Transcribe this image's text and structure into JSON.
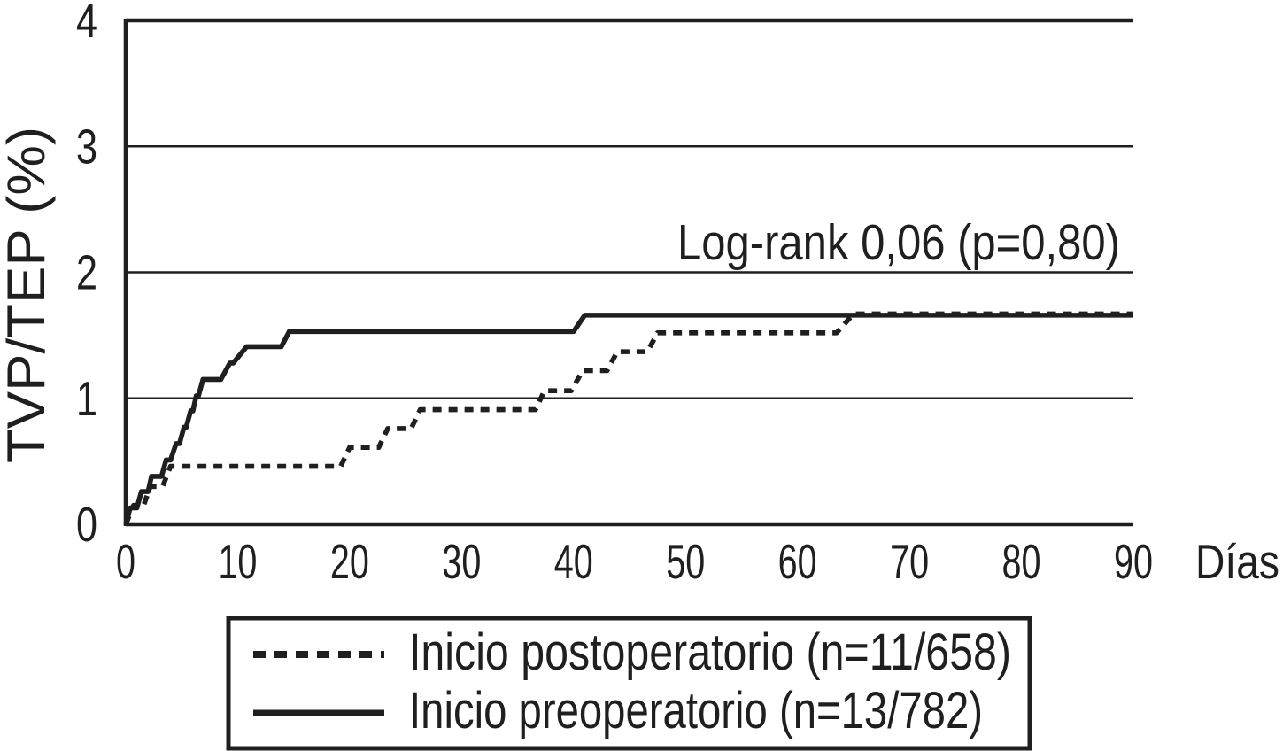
{
  "figure": {
    "y_axis_title": "TVP/TEP (%)",
    "x_axis_title": "Días",
    "annotation": "Log-rank 0,06 (p=0,80)",
    "line_color": "#1f1f1f",
    "background_color": "#ffffff"
  },
  "legend": {
    "items": [
      {
        "label": "Inicio postoperatorio (n=11/658)",
        "style": "dashed"
      },
      {
        "label": "Inicio preoperatorio (n=13/782)",
        "style": "solid"
      }
    ]
  },
  "chart_data": {
    "type": "line",
    "subtype": "kaplan-meier-step",
    "title": "",
    "xlabel": "Días",
    "ylabel": "TVP/TEP (%)",
    "xlim": [
      0,
      90
    ],
    "ylim": [
      0,
      4
    ],
    "x_ticks": [
      "0",
      "10",
      "20",
      "30",
      "40",
      "50",
      "60",
      "70",
      "80",
      "90"
    ],
    "y_ticks": [
      "0",
      "1",
      "2",
      "3",
      "4"
    ],
    "grid": "horizontal",
    "legend_position": "bottom",
    "annotation": "Log-rank 0,06 (p=0,80)",
    "series": [
      {
        "name": "Inicio postoperatorio (n=11/658)",
        "style": "dashed",
        "events": 11,
        "total": 658,
        "final_percent": 1.67,
        "points": [
          [
            0,
            0
          ],
          [
            0.7,
            0.15
          ],
          [
            1.6,
            0.15
          ],
          [
            2.2,
            0.3
          ],
          [
            3.3,
            0.3
          ],
          [
            4.0,
            0.46
          ],
          [
            19.2,
            0.46
          ],
          [
            20.0,
            0.61
          ],
          [
            22.6,
            0.61
          ],
          [
            23.4,
            0.76
          ],
          [
            25.5,
            0.76
          ],
          [
            26.3,
            0.91
          ],
          [
            36.6,
            0.91
          ],
          [
            37.4,
            1.06
          ],
          [
            39.8,
            1.06
          ],
          [
            40.8,
            1.22
          ],
          [
            43.0,
            1.22
          ],
          [
            43.9,
            1.37
          ],
          [
            46.6,
            1.37
          ],
          [
            47.5,
            1.52
          ],
          [
            63.5,
            1.52
          ],
          [
            65.0,
            1.67
          ],
          [
            90,
            1.67
          ]
        ]
      },
      {
        "name": "Inicio preoperatorio (n=13/782)",
        "style": "solid",
        "events": 13,
        "total": 782,
        "final_percent": 1.66,
        "points": [
          [
            0,
            0
          ],
          [
            0.4,
            0.13
          ],
          [
            1.0,
            0.13
          ],
          [
            1.4,
            0.26
          ],
          [
            2.0,
            0.26
          ],
          [
            2.3,
            0.38
          ],
          [
            3.2,
            0.38
          ],
          [
            3.6,
            0.51
          ],
          [
            4.0,
            0.51
          ],
          [
            4.5,
            0.64
          ],
          [
            4.8,
            0.64
          ],
          [
            5.2,
            0.77
          ],
          [
            5.4,
            0.77
          ],
          [
            5.8,
            0.9
          ],
          [
            6.0,
            0.9
          ],
          [
            6.3,
            1.02
          ],
          [
            6.5,
            1.02
          ],
          [
            6.9,
            1.15
          ],
          [
            8.5,
            1.15
          ],
          [
            9.3,
            1.28
          ],
          [
            9.6,
            1.28
          ],
          [
            10.8,
            1.41
          ],
          [
            13.9,
            1.41
          ],
          [
            14.6,
            1.53
          ],
          [
            40.0,
            1.53
          ],
          [
            41.0,
            1.66
          ],
          [
            90,
            1.66
          ]
        ]
      }
    ]
  }
}
